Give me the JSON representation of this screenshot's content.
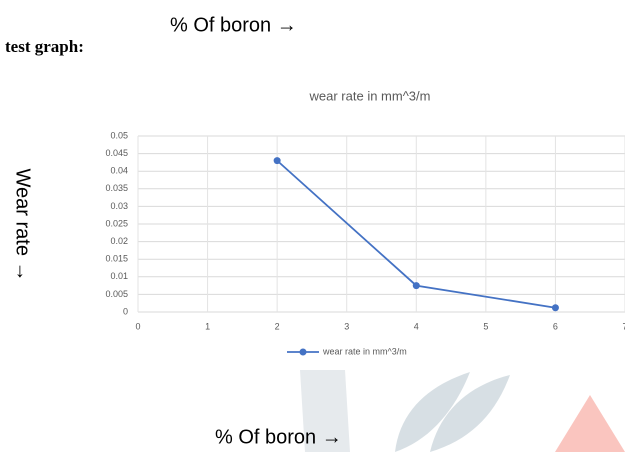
{
  "header": {
    "axis_note": "% Of boron →",
    "label": "test graph:"
  },
  "side_note": "Wear rate →",
  "footer": {
    "axis_note": "% Of boron →"
  },
  "chart_data": {
    "type": "line",
    "title": "wear rate in mm^3/m",
    "x": [
      2,
      4,
      6
    ],
    "series": [
      {
        "name": "wear rate in mm^3/m",
        "color": "#4472c4",
        "values": [
          0.043,
          0.0075,
          0.0012
        ]
      }
    ],
    "xlim": [
      0,
      7
    ],
    "xticks": [
      0,
      1,
      2,
      3,
      4,
      5,
      6,
      7
    ],
    "ylim": [
      0,
      0.05
    ],
    "yticks": [
      0,
      0.005,
      0.01,
      0.015,
      0.02,
      0.025,
      0.03,
      0.035,
      0.04,
      0.045,
      0.05
    ],
    "grid": true,
    "legend": "bottom"
  }
}
